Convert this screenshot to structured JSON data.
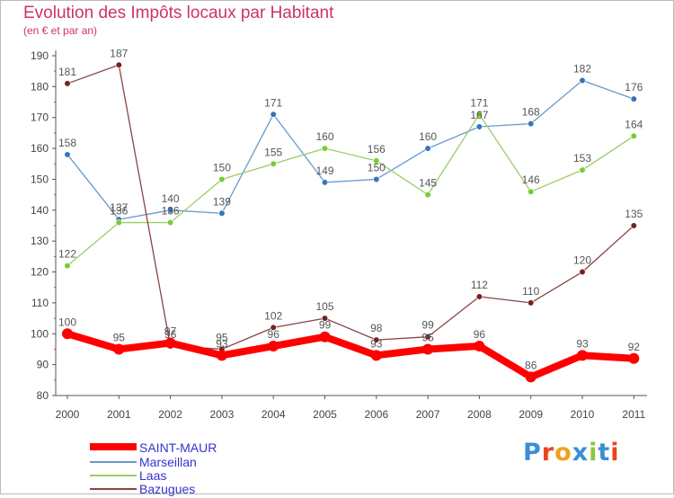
{
  "title": "Evolution des Impôts locaux par Habitant",
  "subtitle": "(en € et par an)",
  "logo": {
    "text": "Proxiti",
    "colors": [
      "#3a8fd6",
      "#e8461e",
      "#f0a21d",
      "#3a8fd6",
      "#8cc63f",
      "#3a8fd6",
      "#e8461e"
    ]
  },
  "chart_data": {
    "type": "line",
    "x": [
      "2000",
      "2001",
      "2002",
      "2003",
      "2004",
      "2005",
      "2006",
      "2007",
      "2008",
      "2009",
      "2010",
      "2011"
    ],
    "ylim": [
      80,
      190
    ],
    "yticks": [
      "80",
      "90",
      "100",
      "110",
      "120",
      "130",
      "140",
      "150",
      "160",
      "170",
      "180",
      "190"
    ],
    "grid": false,
    "legend_position": "bottom-left",
    "series": [
      {
        "name": "SAINT-MAUR",
        "color": "#ff0000",
        "point_color": "#ff0000",
        "thick": true,
        "values": [
          100,
          95,
          97,
          93,
          96,
          99,
          93,
          95,
          96,
          86,
          93,
          92
        ]
      },
      {
        "name": "Marseillan",
        "color": "#6699cc",
        "point_color": "#3377bb",
        "thick": false,
        "values": [
          158,
          137,
          140,
          139,
          171,
          149,
          150,
          160,
          167,
          168,
          182,
          176
        ]
      },
      {
        "name": "Laas",
        "color": "#99cc66",
        "point_color": "#77cc33",
        "thick": false,
        "values": [
          122,
          136,
          136,
          150,
          155,
          160,
          156,
          145,
          171,
          146,
          153,
          164
        ]
      },
      {
        "name": "Bazugues",
        "color": "#884444",
        "point_color": "#772222",
        "thick": false,
        "values": [
          181,
          187,
          96,
          95,
          102,
          105,
          98,
          99,
          112,
          110,
          120,
          135
        ]
      }
    ]
  }
}
